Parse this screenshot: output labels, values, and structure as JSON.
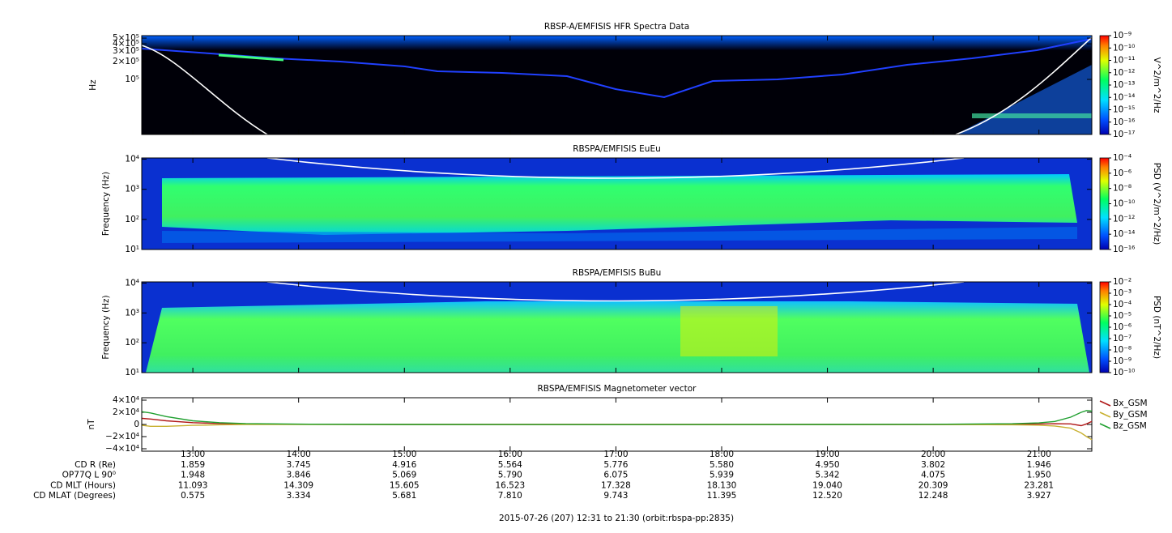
{
  "chart_data": [
    {
      "type": "spectrogram",
      "title": "RBSP-A/EMFISIS  HFR Spectra Data",
      "ylabel": "Hz",
      "log_y": true,
      "ylim": [
        11700,
        550000
      ],
      "yticks": [
        {
          "value": 500000,
          "label": "5×10⁵"
        },
        {
          "value": 400000,
          "label": "4×10⁵"
        },
        {
          "value": 300000,
          "label": "3×10⁵"
        },
        {
          "value": 200000,
          "label": "2×10⁵"
        },
        {
          "value": 100000,
          "label": "10⁵"
        }
      ],
      "colorbar": {
        "label": "V^2/m^2/Hz",
        "zlim": [
          1e-17,
          1e-09
        ],
        "zticks": [
          {
            "value": 1e-09,
            "label": "10⁻⁹"
          },
          {
            "value": 1e-10,
            "label": "10⁻¹⁰"
          },
          {
            "value": 1e-11,
            "label": "10⁻¹¹"
          },
          {
            "value": 1e-12,
            "label": "10⁻¹²"
          },
          {
            "value": 1e-13,
            "label": "10⁻¹³"
          },
          {
            "value": 1e-14,
            "label": "10⁻¹⁴"
          },
          {
            "value": 1e-15,
            "label": "10⁻¹⁵"
          },
          {
            "value": 1e-16,
            "label": "10⁻¹⁶"
          },
          {
            "value": 1e-17,
            "label": "10⁻¹⁷"
          }
        ]
      }
    },
    {
      "type": "spectrogram",
      "title": "RBSPA/EMFISIS  EuEu",
      "ylabel": "Frequency (Hz)",
      "log_y": true,
      "ylim": [
        10,
        11000
      ],
      "yticks": [
        {
          "value": 10,
          "label": "10¹"
        },
        {
          "value": 100,
          "label": "10²"
        },
        {
          "value": 1000,
          "label": "10³"
        },
        {
          "value": 10000,
          "label": "10⁴"
        }
      ],
      "colorbar": {
        "label": "PSD (V^2/m^2/Hz)",
        "zlim": [
          1e-16,
          0.0001
        ],
        "zticks": [
          {
            "value": 0.0001,
            "label": "10⁻⁴"
          },
          {
            "value": 1e-06,
            "label": "10⁻⁶"
          },
          {
            "value": 1e-08,
            "label": "10⁻⁸"
          },
          {
            "value": 1e-10,
            "label": "10⁻¹⁰"
          },
          {
            "value": 1e-12,
            "label": "10⁻¹²"
          },
          {
            "value": 1e-14,
            "label": "10⁻¹⁴"
          },
          {
            "value": 1e-16,
            "label": "10⁻¹⁶"
          }
        ]
      }
    },
    {
      "type": "spectrogram",
      "title": "RBSPA/EMFISIS  BuBu",
      "ylabel": "Frequency (Hz)",
      "log_y": true,
      "ylim": [
        10,
        11000
      ],
      "yticks": [
        {
          "value": 10,
          "label": "10¹"
        },
        {
          "value": 100,
          "label": "10²"
        },
        {
          "value": 1000,
          "label": "10³"
        },
        {
          "value": 10000,
          "label": "10⁴"
        }
      ],
      "colorbar": {
        "label": "PSD (nT^2/Hz)",
        "zlim": [
          1e-10,
          0.01
        ],
        "zticks": [
          {
            "value": 0.01,
            "label": "10⁻²"
          },
          {
            "value": 0.001,
            "label": "10⁻³"
          },
          {
            "value": 0.0001,
            "label": "10⁻⁴"
          },
          {
            "value": 1e-05,
            "label": "10⁻⁵"
          },
          {
            "value": 1e-06,
            "label": "10⁻⁶"
          },
          {
            "value": 1e-07,
            "label": "10⁻⁷"
          },
          {
            "value": 1e-08,
            "label": "10⁻⁸"
          },
          {
            "value": 1e-09,
            "label": "10⁻⁹"
          },
          {
            "value": 1e-10,
            "label": "10⁻¹⁰"
          }
        ]
      }
    },
    {
      "type": "line",
      "title": "RBSPA/EMFISIS  Magnetometer vector",
      "ylabel": "nT",
      "ylim": [
        -44000,
        44000
      ],
      "yticks": [
        {
          "value": 40000,
          "label": "4×10⁴"
        },
        {
          "value": 20000,
          "label": "2×10⁴"
        },
        0,
        {
          "value": -20000,
          "label": "−2×10⁴"
        },
        {
          "value": -40000,
          "label": "−4×10⁴"
        }
      ],
      "xlim": [
        12.5167,
        21.5
      ],
      "xticks": [
        {
          "value": 13,
          "label": "13:00"
        },
        {
          "value": 14,
          "label": "14:00"
        },
        {
          "value": 15,
          "label": "15:00"
        },
        {
          "value": 16,
          "label": "16:00"
        },
        {
          "value": 17,
          "label": "17:00"
        },
        {
          "value": 18,
          "label": "18:00"
        },
        {
          "value": 19,
          "label": "19:00"
        },
        {
          "value": 20,
          "label": "20:00"
        },
        {
          "value": 21,
          "label": "21:00"
        }
      ],
      "x": [
        12.52,
        12.6,
        12.75,
        13,
        13.25,
        13.5,
        14,
        15,
        16,
        17,
        18,
        19,
        20,
        20.75,
        21,
        21.15,
        21.3,
        21.4,
        21.45,
        21.5
      ],
      "series": [
        {
          "name": "Bx_GSM",
          "color": "#b01818",
          "values": [
            10000,
            9000,
            6000,
            3000,
            1500,
            800,
            300,
            0,
            0,
            0,
            0,
            0,
            0,
            300,
            800,
            1200,
            1000,
            -2000,
            1000,
            5000
          ]
        },
        {
          "name": "By_GSM",
          "color": "#c8b030",
          "values": [
            -1500,
            -3000,
            -3000,
            -1500,
            -500,
            0,
            0,
            0,
            0,
            0,
            0,
            0,
            0,
            -500,
            -1200,
            -2500,
            -6000,
            -14000,
            -20000,
            -25000
          ]
        },
        {
          "name": "Bz_GSM",
          "color": "#20a030",
          "values": [
            21000,
            19000,
            13000,
            6000,
            3000,
            1500,
            500,
            0,
            -200,
            -300,
            -200,
            0,
            300,
            1200,
            2500,
            5000,
            12000,
            20000,
            23000,
            22000
          ]
        }
      ]
    }
  ],
  "ephemeris": {
    "rows": [
      {
        "label": "CD R (Re)",
        "values": [
          "1.859",
          "3.745",
          "4.916",
          "5.564",
          "5.776",
          "5.580",
          "4.950",
          "3.802",
          "1.946"
        ]
      },
      {
        "label": "OP77Q L 90⁰",
        "values": [
          "1.948",
          "3.846",
          "5.069",
          "5.790",
          "6.075",
          "5.939",
          "5.342",
          "4.075",
          "1.950"
        ]
      },
      {
        "label": "CD MLT (Hours)",
        "values": [
          "11.093",
          "14.309",
          "15.605",
          "16.523",
          "17.328",
          "18.130",
          "19.040",
          "20.309",
          "23.281"
        ]
      },
      {
        "label": "CD MLAT (Degrees)",
        "values": [
          "0.575",
          "3.334",
          "5.681",
          "7.810",
          "9.743",
          "11.395",
          "12.520",
          "12.248",
          "3.927"
        ]
      }
    ]
  },
  "footer": "2015-07-26 (207) 12:31 to 21:30 (orbit:rbspa-pp:2835)"
}
